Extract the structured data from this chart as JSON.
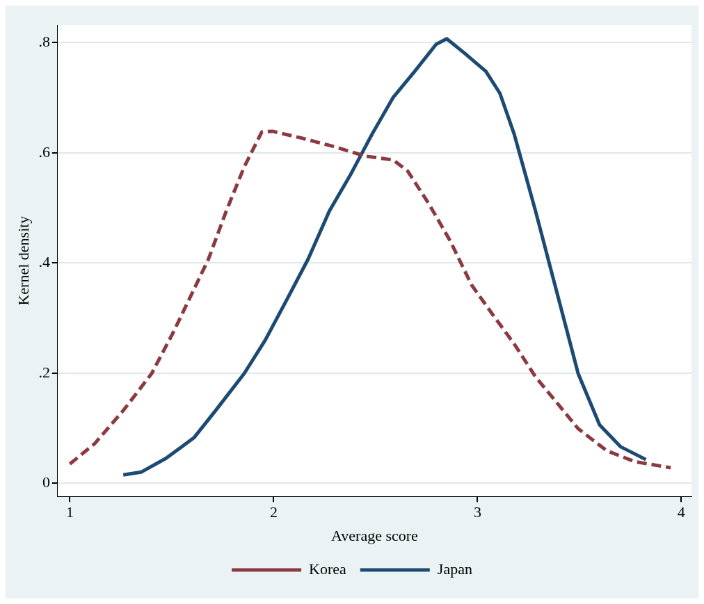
{
  "chart_data": {
    "type": "line",
    "xlabel": "Average score",
    "ylabel": "Kernel density",
    "xlim": [
      0.94,
      4.05
    ],
    "xticks": [
      1,
      2,
      3,
      4
    ],
    "ylim": [
      -0.024,
      0.832
    ],
    "yticks": [
      0,
      {
        "value": 0.2,
        "label": ".2"
      },
      {
        "value": 0.4,
        "label": ".4"
      },
      {
        "value": 0.6,
        "label": ".6"
      },
      {
        "value": 0.8,
        "label": ".8"
      }
    ],
    "grid": "y",
    "legend": "bottom",
    "marker": "none",
    "series": [
      {
        "name": "Korea",
        "color": "#8b3a42",
        "line_style": "dashed",
        "x": [
          1,
          1.122,
          1.262,
          1.401,
          1.506,
          1.61,
          1.68,
          1.767,
          1.855,
          1.942,
          1.994,
          2.134,
          2.308,
          2.448,
          2.587,
          2.657,
          2.762,
          2.866,
          2.971,
          3.075,
          3.18,
          3.285,
          3.39,
          3.494,
          3.634,
          3.773,
          3.948
        ],
        "values": [
          0.035,
          0.072,
          0.132,
          0.199,
          0.273,
          0.353,
          0.407,
          0.494,
          0.574,
          0.638,
          0.639,
          0.627,
          0.61,
          0.594,
          0.587,
          0.567,
          0.507,
          0.44,
          0.36,
          0.306,
          0.253,
          0.193,
          0.146,
          0.099,
          0.059,
          0.039,
          0.028
        ]
      },
      {
        "name": "Japan",
        "color": "#1d4a73",
        "line_style": "solid",
        "x": [
          1.262,
          1.349,
          1.471,
          1.61,
          1.715,
          1.855,
          1.959,
          2.064,
          2.169,
          2.273,
          2.378,
          2.483,
          2.587,
          2.692,
          2.797,
          2.849,
          2.936,
          3.041,
          3.11,
          3.18,
          3.285,
          3.39,
          3.494,
          3.599,
          3.703,
          3.826
        ],
        "values": [
          0.015,
          0.02,
          0.045,
          0.083,
          0.132,
          0.199,
          0.26,
          0.333,
          0.407,
          0.494,
          0.561,
          0.634,
          0.701,
          0.748,
          0.797,
          0.807,
          0.781,
          0.748,
          0.708,
          0.634,
          0.494,
          0.346,
          0.199,
          0.106,
          0.066,
          0.043
        ]
      }
    ]
  }
}
